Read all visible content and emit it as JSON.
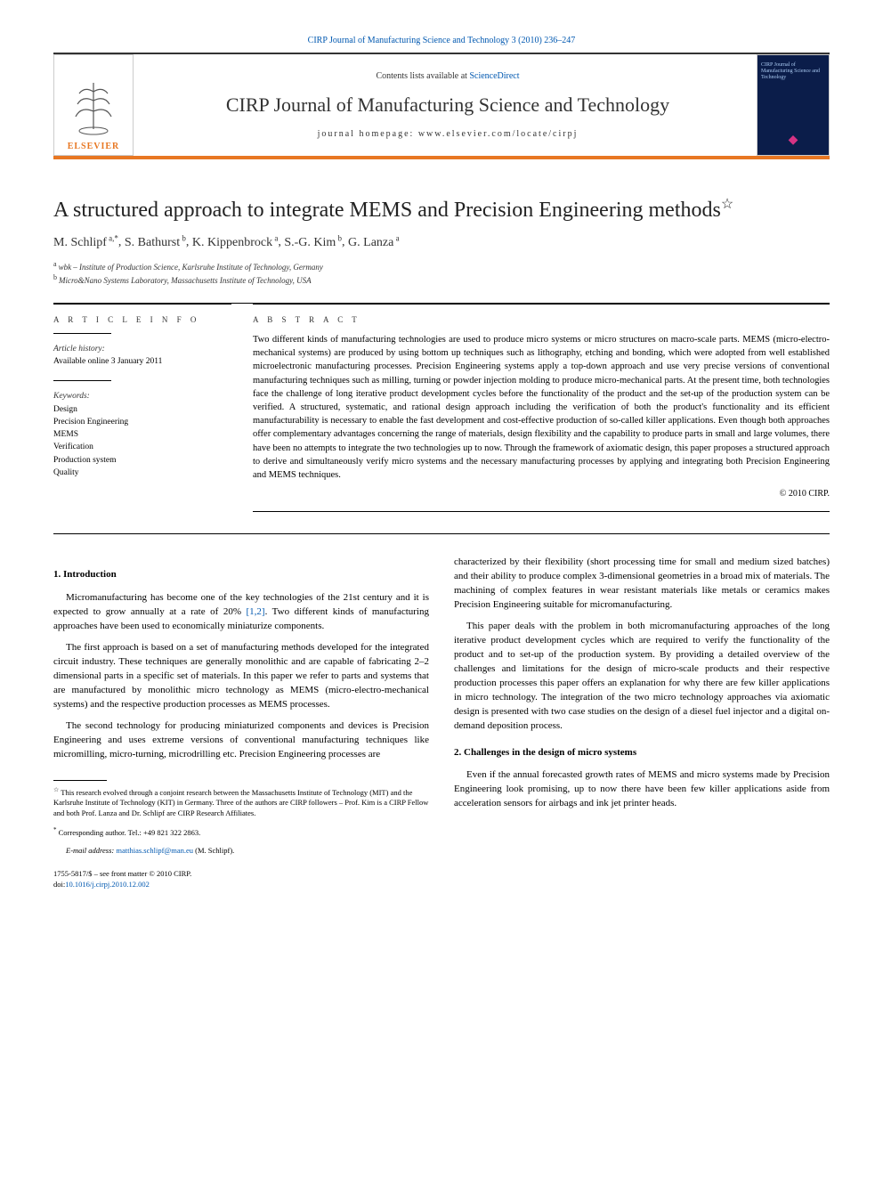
{
  "header": {
    "journal_ref": "CIRP Journal of Manufacturing Science and Technology 3 (2010) 236–247",
    "contents_prefix": "Contents lists available at ",
    "contents_link": "ScienceDirect",
    "journal_title": "CIRP Journal of Manufacturing Science and Technology",
    "homepage_prefix": "journal homepage: ",
    "homepage_url": "www.elsevier.com/locate/cirpj",
    "elsevier_label": "ELSEVIER",
    "cover_text": "CIRP Journal of Manufacturing Science and Technology",
    "accent_color": "#e87722",
    "link_color": "#0058b0",
    "cover_bg": "#0b1d4a"
  },
  "article": {
    "title": "A structured approach to integrate MEMS and Precision Engineering methods",
    "title_note_symbol": "☆",
    "authors_html": "M. Schlipf",
    "authors": [
      {
        "name": "M. Schlipf",
        "sup": "a,*"
      },
      {
        "name": "S. Bathurst",
        "sup": "b"
      },
      {
        "name": "K. Kippenbrock",
        "sup": "a"
      },
      {
        "name": "S.-G. Kim",
        "sup": "b"
      },
      {
        "name": "G. Lanza",
        "sup": "a"
      }
    ],
    "affiliations": [
      {
        "sup": "a",
        "text": "wbk – Institute of Production Science, Karlsruhe Institute of Technology, Germany"
      },
      {
        "sup": "b",
        "text": "Micro&Nano Systems Laboratory, Massachusetts Institute of Technology, USA"
      }
    ]
  },
  "meta": {
    "info_heading": "A R T I C L E   I N F O",
    "history_label": "Article history:",
    "history_value": "Available online 3 January 2011",
    "keywords_label": "Keywords:",
    "keywords": [
      "Design",
      "Precision Engineering",
      "MEMS",
      "Verification",
      "Production system",
      "Quality"
    ]
  },
  "abstract": {
    "heading": "A B S T R A C T",
    "text": "Two different kinds of manufacturing technologies are used to produce micro systems or micro structures on macro-scale parts. MEMS (micro-electro-mechanical systems) are produced by using bottom up techniques such as lithography, etching and bonding, which were adopted from well established microelectronic manufacturing processes. Precision Engineering systems apply a top-down approach and use very precise versions of conventional manufacturing techniques such as milling, turning or powder injection molding to produce micro-mechanical parts. At the present time, both technologies face the challenge of long iterative product development cycles before the functionality of the product and the set-up of the production system can be verified. A structured, systematic, and rational design approach including the verification of both the product's functionality and its efficient manufacturability is necessary to enable the fast development and cost-effective production of so-called killer applications. Even though both approaches offer complementary advantages concerning the range of materials, design flexibility and the capability to produce parts in small and large volumes, there have been no attempts to integrate the two technologies up to now. Through the framework of axiomatic design, this paper proposes a structured approach to derive and simultaneously verify micro systems and the necessary manufacturing processes by applying and integrating both Precision Engineering and MEMS techniques.",
    "copyright": "© 2010 CIRP."
  },
  "body": {
    "sec1_heading": "1.  Introduction",
    "sec1_p1a": "Micromanufacturing has become one of the key technologies of the 21st century and it is expected to grow annually at a rate of 20% ",
    "sec1_p1_ref": "[1,2]",
    "sec1_p1b": ". Two different kinds of manufacturing approaches have been used to economically miniaturize components.",
    "sec1_p2": "The first approach is based on a set of manufacturing methods developed for the integrated circuit industry. These techniques are generally monolithic and are capable of fabricating 2–2 dimensional parts in a specific set of materials. In this paper we refer to parts and systems that are manufactured by monolithic micro technology as MEMS (micro-electro-mechanical systems) and the respective production processes as MEMS processes.",
    "sec1_p3": "The second technology for producing miniaturized components and devices is Precision Engineering and uses extreme versions of conventional manufacturing techniques like micromilling, micro-turning, microdrilling etc. Precision Engineering processes are",
    "col2_p1": "characterized by their flexibility (short processing time for small and medium sized batches) and their ability to produce complex 3-dimensional geometries in a broad mix of materials. The machining of complex features in wear resistant materials like metals or ceramics makes Precision Engineering suitable for micromanufacturing.",
    "col2_p2": "This paper deals with the problem in both micromanufacturing approaches of the long iterative product development cycles which are required to verify the functionality of the product and to set-up of the production system. By providing a detailed overview of the challenges and limitations for the design of micro-scale products and their respective production processes this paper offers an explanation for why there are few killer applications in micro technology. The integration of the two micro technology approaches via axiomatic design is presented with two case studies on the design of a diesel fuel injector and a digital on-demand deposition process.",
    "sec2_heading": "2.  Challenges in the design of micro systems",
    "sec2_p1": "Even if the annual forecasted growth rates of MEMS and micro systems made by Precision Engineering look promising, up to now there have been few killer applications aside from acceleration sensors for airbags and ink jet printer heads."
  },
  "footnotes": {
    "star_symbol": "☆",
    "star_text": "This research evolved through a conjoint research between the Massachusetts Institute of Technology (MIT) and the Karlsruhe Institute of Technology (KIT) in Germany. Three of the authors are CIRP followers – Prof. Kim is a CIRP Fellow and both Prof. Lanza and Dr. Schlipf are CIRP Research Affiliates.",
    "corr_symbol": "*",
    "corr_text": "Corresponding author. Tel.: +49 821 322 2863.",
    "email_label": "E-mail address: ",
    "email": "matthias.schlipf@man.eu",
    "email_suffix": " (M. Schlipf)."
  },
  "footer": {
    "issn_line": "1755-5817/$ – see front matter © 2010 CIRP.",
    "doi_prefix": "doi:",
    "doi": "10.1016/j.cirpj.2010.12.002"
  }
}
